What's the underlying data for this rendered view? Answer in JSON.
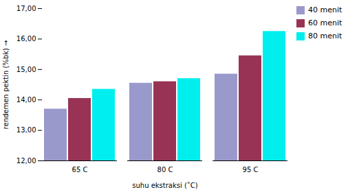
{
  "chart_data": {
    "type": "bar",
    "categories": [
      "65 C",
      "80 C",
      "95 C"
    ],
    "series": [
      {
        "name": "40 menit",
        "color": "#9999cc",
        "values": [
          13.7,
          14.55,
          14.85
        ]
      },
      {
        "name": "60 menit",
        "color": "#993355",
        "values": [
          14.05,
          14.6,
          15.45
        ]
      },
      {
        "name": "80 menit",
        "color": "#00eeee",
        "values": [
          14.35,
          14.7,
          16.25
        ]
      }
    ],
    "xlabel": "suhu ekstraksi (˚C)",
    "ylabel": "rendemen pektin (%bk)",
    "ylim": [
      12.0,
      17.0
    ],
    "yticks": [
      {
        "value": 12,
        "label": "12,00"
      },
      {
        "value": 13,
        "label": "13,00"
      },
      {
        "value": 14,
        "label": "14,00"
      },
      {
        "value": 15,
        "label": "15,00"
      },
      {
        "value": 16,
        "label": "16,00"
      },
      {
        "value": 17,
        "label": "17,00"
      }
    ],
    "grid": false,
    "legend": "right"
  }
}
